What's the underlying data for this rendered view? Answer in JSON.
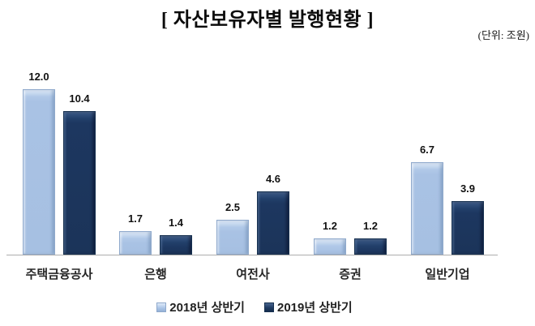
{
  "title": "[ 자산보유자별 발행현황 ]",
  "unit_label": "(단위: 조원)",
  "colors": {
    "series_2018": "#a6c0e2",
    "series_2019": "#1b3459",
    "axis": "#adadad"
  },
  "chart_data": {
    "type": "bar",
    "categories": [
      "주택금융공사",
      "은행",
      "여전사",
      "증권",
      "일반기업"
    ],
    "series": [
      {
        "name": "2018년 상반기",
        "values": [
          12.0,
          1.7,
          2.5,
          1.2,
          6.7
        ]
      },
      {
        "name": "2019년 상반기",
        "values": [
          10.4,
          1.4,
          4.6,
          1.2,
          3.9
        ]
      }
    ],
    "value_labels_shown": true,
    "ylim": [
      0,
      13
    ],
    "grid": false,
    "legend_position": "bottom"
  }
}
